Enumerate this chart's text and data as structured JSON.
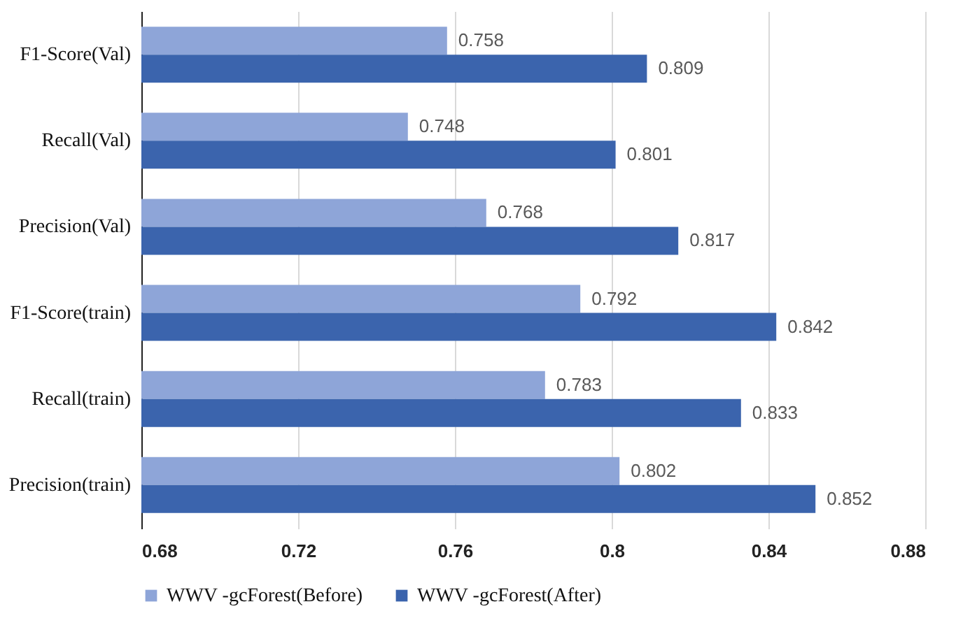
{
  "chart_data": {
    "type": "bar",
    "orientation": "horizontal",
    "categories": [
      "F1-Score(Val)",
      "Recall(Val)",
      "Precision(Val)",
      "F1-Score(train)",
      "Recall(train)",
      "Precision(train)"
    ],
    "series": [
      {
        "name": "WWV -gcForest(Before)",
        "color": "#8ea5d8",
        "values": [
          0.758,
          0.748,
          0.768,
          0.792,
          0.783,
          0.802
        ]
      },
      {
        "name": "WWV -gcForest(After)",
        "color": "#3b64ad",
        "values": [
          0.809,
          0.801,
          0.817,
          0.842,
          0.833,
          0.852
        ]
      }
    ],
    "xlim": [
      0.68,
      0.88
    ],
    "xticks": [
      0.68,
      0.72,
      0.76,
      0.8,
      0.84,
      0.88
    ],
    "grid": "x",
    "legend": "bottom",
    "data_labels": true
  }
}
